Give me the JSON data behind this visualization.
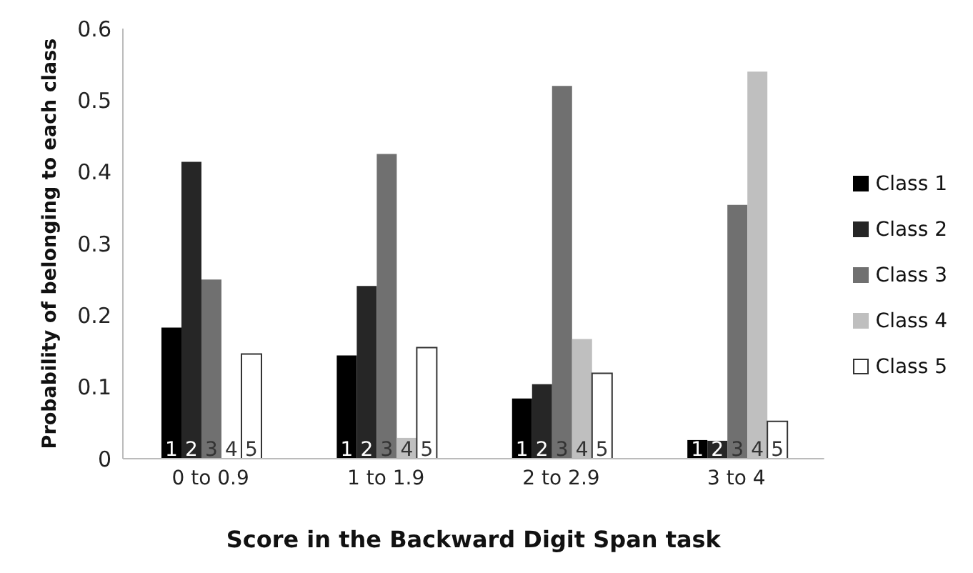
{
  "chart_data": {
    "type": "bar",
    "xlabel": "Score in the Backward Digit Span task",
    "ylabel": "Probability of belonging to each class",
    "categories": [
      "0 to 0.9",
      "1 to 1.9",
      "2 to 2.9",
      "3 to 4"
    ],
    "series": [
      {
        "name": "Class 1",
        "color": "#000000",
        "values": [
          0.183,
          0.144,
          0.084,
          0.026
        ]
      },
      {
        "name": "Class 2",
        "color": "#262626",
        "values": [
          0.414,
          0.241,
          0.104,
          0.025
        ]
      },
      {
        "name": "Class 3",
        "color": "#707070",
        "values": [
          0.25,
          0.425,
          0.52,
          0.354
        ]
      },
      {
        "name": "Class 4",
        "color": "#bfbfbf",
        "values": [
          0,
          0.029,
          0.167,
          0.54
        ]
      },
      {
        "name": "Class 5",
        "color": "#ffffff",
        "values": [
          0.146,
          0.155,
          0.119,
          0.052
        ]
      }
    ],
    "annotations": [
      {
        "text": "1",
        "x": "0 to 0.9",
        "y": 0
      },
      {
        "text": "2",
        "x": "0 to 0.9",
        "y": 0
      },
      {
        "text": "3",
        "x": "0 to 0.9",
        "y": 0
      },
      {
        "text": "4",
        "x": "0 to 0.9",
        "y": 0
      },
      {
        "text": "5",
        "x": "0 to 0.9",
        "y": 0
      },
      {
        "text": "1",
        "x": "1 to 1.9",
        "y": 0
      },
      {
        "text": "2",
        "x": "1 to 1.9",
        "y": 0
      },
      {
        "text": "3",
        "x": "1 to 1.9",
        "y": 0
      },
      {
        "text": "4",
        "x": "1 to 1.9",
        "y": 0
      },
      {
        "text": "5",
        "x": "1 to 1.9",
        "y": 0
      },
      {
        "text": "1",
        "x": "2 to 2.9",
        "y": 0
      },
      {
        "text": "2",
        "x": "2 to 2.9",
        "y": 0
      },
      {
        "text": "3",
        "x": "2 to 2.9",
        "y": 0
      },
      {
        "text": "4",
        "x": "2 to 2.9",
        "y": 0
      },
      {
        "text": "5",
        "x": "2 to 2.9",
        "y": 0
      },
      {
        "text": "1",
        "x": "3 to 4",
        "y": 0
      },
      {
        "text": "2",
        "x": "3 to 4",
        "y": 0
      },
      {
        "text": "3",
        "x": "3 to 4",
        "y": 0
      },
      {
        "text": "4",
        "x": "3 to 4",
        "y": 0
      },
      {
        "text": "5",
        "x": "3 to 4",
        "y": 0
      }
    ],
    "ylim": [
      0,
      0.6
    ],
    "yticks": [
      0,
      0.1,
      0.2,
      0.3,
      0.4,
      0.5,
      0.6
    ],
    "grid": false,
    "legend": "right"
  }
}
